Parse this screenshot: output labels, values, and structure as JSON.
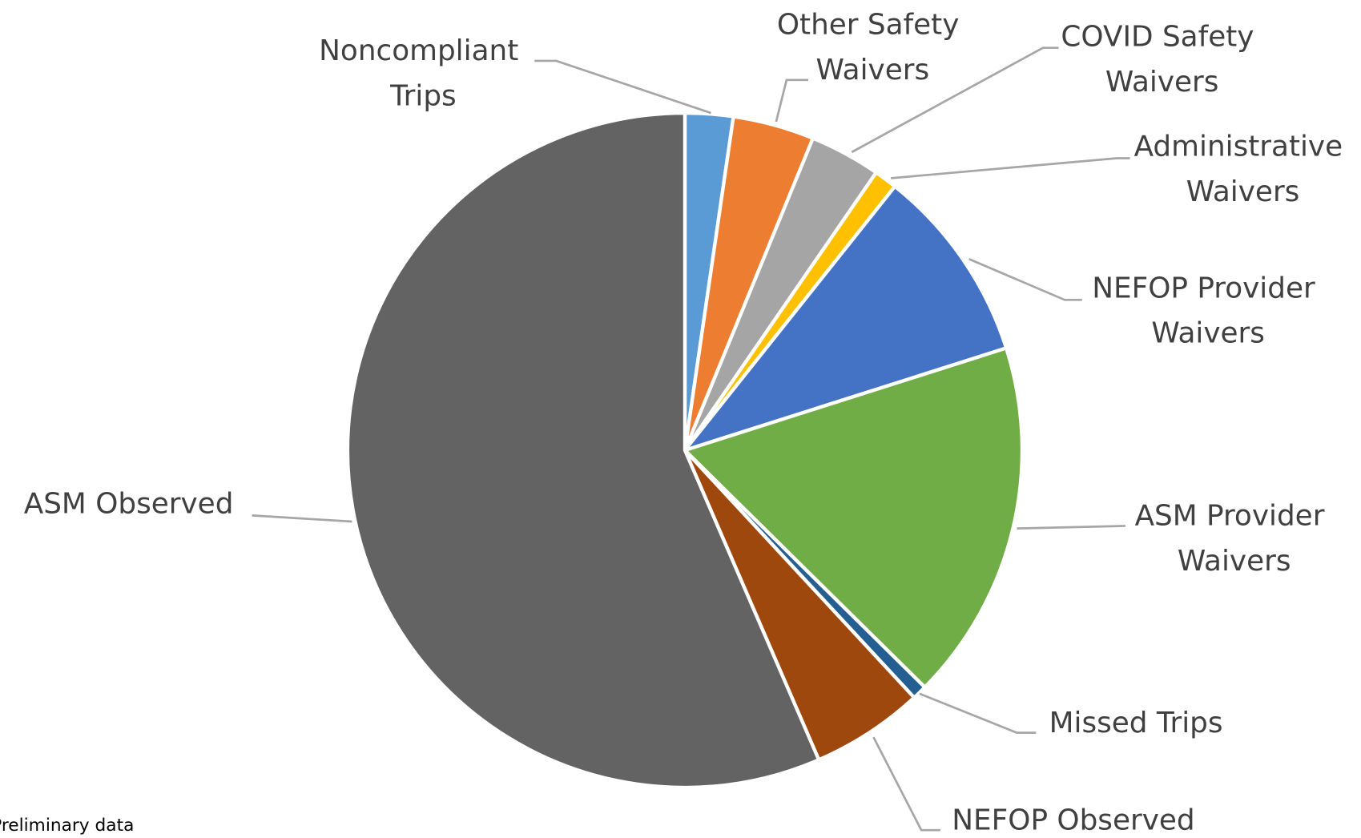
{
  "chart_data": {
    "type": "pie",
    "categories": [
      "Noncompliant Trips",
      "Other Safety Waivers",
      "COVID Safety Waivers",
      "Administrative Waivers",
      "NEFOP Provider Waivers",
      "ASM Provider Waivers",
      "Missed Trips",
      "NEFOP Observed",
      "ASM Observed"
    ],
    "values": [
      2.3,
      3.9,
      3.4,
      1.1,
      9.4,
      17.3,
      0.7,
      5.4,
      56.5
    ],
    "colors": [
      "#5b9bd5",
      "#ed7d31",
      "#a5a5a5",
      "#ffc000",
      "#4472c4",
      "#70ad47",
      "#255e91",
      "#9e480e",
      "#636363"
    ],
    "note": "Preliminary data"
  }
}
